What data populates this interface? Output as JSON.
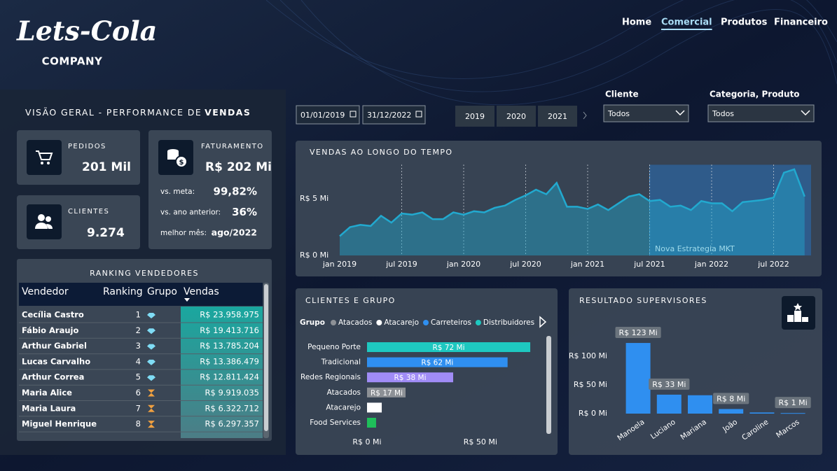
{
  "header": {
    "logo": "Lets-Cola",
    "company": "COMPANY",
    "nav": [
      "Home",
      "Comercial",
      "Produtos",
      "Financeiro"
    ],
    "active_nav": 1
  },
  "filters": {
    "date_start": "01/01/2019",
    "date_end": "31/12/2022",
    "years": [
      "2019",
      "2020",
      "2021"
    ],
    "cliente": {
      "label": "Cliente",
      "value": "Todos"
    },
    "categoria": {
      "label": "Categoria, Produto",
      "value": "Todos"
    }
  },
  "overview": {
    "title": "VISÃO GERAL - PERFORMANCE DE",
    "title_bold": "VENDAS",
    "pedidos": {
      "label": "PEDIDOS",
      "value": "201 Mil"
    },
    "clientes": {
      "label": "CLIENTES",
      "value": "9.274"
    },
    "faturamento": {
      "label": "FATURAMENTO",
      "value": "R$ 202 Mi",
      "rows": [
        {
          "label": "vs. meta:",
          "value": "99,82%"
        },
        {
          "label": "vs. ano anterior:",
          "value": "36%"
        },
        {
          "label": "melhor mês:",
          "value": "ago/2022"
        }
      ]
    }
  },
  "ranking": {
    "title": "RANKING VENDEDORES",
    "columns": [
      "Vendedor",
      "Ranking",
      "Grupo",
      "Vendas"
    ],
    "rows": [
      [
        "Cecília Castro",
        1,
        "R$ 23.958.975"
      ],
      [
        "Fábio Araujo",
        2,
        "R$ 19.413.716"
      ],
      [
        "Arthur Gabriel",
        3,
        "R$ 13.785.204"
      ],
      [
        "Lucas Carvalho",
        4,
        "R$ 13.386.479"
      ],
      [
        "Arthur Correa",
        5,
        "R$ 12.811.424"
      ],
      [
        "Maria Alice",
        6,
        "R$ 9.919.035"
      ],
      [
        "Maria Laura",
        7,
        "R$ 6.322.712"
      ],
      [
        "Miguel Henrique",
        8,
        "R$ 6.297.357"
      ]
    ]
  },
  "chart_data": [
    {
      "type": "line",
      "title": "VENDAS AO LONGO DO TEMPO",
      "x": [
        "2019-01",
        "2019-02",
        "2019-03",
        "2019-04",
        "2019-05",
        "2019-06",
        "2019-07",
        "2019-08",
        "2019-09",
        "2019-10",
        "2019-11",
        "2019-12",
        "2020-01",
        "2020-02",
        "2020-03",
        "2020-04",
        "2020-05",
        "2020-06",
        "2020-07",
        "2020-08",
        "2020-09",
        "2020-10",
        "2020-11",
        "2020-12",
        "2021-01",
        "2021-02",
        "2021-03",
        "2021-04",
        "2021-05",
        "2021-06",
        "2021-07",
        "2021-08",
        "2021-09",
        "2021-10",
        "2021-11",
        "2021-12",
        "2022-01",
        "2022-02",
        "2022-03",
        "2022-04",
        "2022-05",
        "2022-06",
        "2022-07",
        "2022-08",
        "2022-09",
        "2022-10"
      ],
      "values": [
        1.7,
        2.5,
        2.7,
        2.6,
        3.5,
        2.9,
        3.7,
        3.6,
        3.8,
        3.2,
        3.2,
        3.8,
        3.6,
        3.9,
        3.8,
        4.2,
        4.4,
        4.9,
        5.3,
        5.8,
        5.4,
        6.4,
        4.3,
        4.3,
        4.1,
        4.5,
        4.0,
        4.6,
        5.2,
        5.4,
        4.8,
        4.9,
        4.3,
        4.4,
        4.0,
        4.8,
        4.6,
        4.6,
        3.9,
        4.7,
        4.8,
        4.9,
        5.1,
        7.3,
        7.6,
        5.2
      ],
      "color": "#22a9cf",
      "ylim": [
        0,
        8
      ],
      "yticks": [
        {
          "value": 0,
          "label": "R$ 0 Mi"
        },
        {
          "value": 5,
          "label": "R$ 5 Mi"
        }
      ],
      "xticks": [
        {
          "value": "2019-01",
          "label": "jan 2019"
        },
        {
          "value": "2019-07",
          "label": "jul 2019"
        },
        {
          "value": "2020-01",
          "label": "jan 2020"
        },
        {
          "value": "2020-07",
          "label": "jul 2020"
        },
        {
          "value": "2021-01",
          "label": "jan 2021"
        },
        {
          "value": "2021-07",
          "label": "jul 2021"
        },
        {
          "value": "2022-01",
          "label": "jan 2022"
        },
        {
          "value": "2022-07",
          "label": "jul 2022"
        }
      ],
      "grid": "x",
      "annotation": {
        "from": "2021-07",
        "label": "Nova Estrategia MKT"
      }
    },
    {
      "type": "bar",
      "orientation": "horizontal",
      "title": "CLIENTES E GRUPO",
      "legend_title": "Grupo",
      "legend": [
        {
          "name": "Atacados",
          "color": "#8d9196"
        },
        {
          "name": "Atacarejo",
          "color": "#ffffff"
        },
        {
          "name": "Carreteiros",
          "color": "#2f8ff0"
        },
        {
          "name": "Distribuidores",
          "color": "#1ec8c0"
        }
      ],
      "categories": [
        "Pequeno Porte",
        "Tradicional",
        "Redes Regionais",
        "Atacados",
        "Atacarejo",
        "Food Services"
      ],
      "values": [
        72,
        62,
        38,
        17,
        6.5,
        4
      ],
      "value_labels": [
        "R$ 72 Mi",
        "R$ 62 Mi",
        "R$ 38 Mi",
        "R$ 17 Mi",
        null,
        null
      ],
      "colors": [
        "#1ec8c0",
        "#2f8ff0",
        "#a08cf6",
        "#8d9196",
        "#ffffff",
        "#1fbf5a"
      ],
      "xlim": [
        0,
        76
      ],
      "xticks": [
        {
          "value": 0,
          "label": "R$ 0 Mi"
        },
        {
          "value": 50,
          "label": "R$ 50 Mi"
        }
      ]
    },
    {
      "type": "bar",
      "title": "RESULTADO SUPERVISORES",
      "categories": [
        "Manoela",
        "Luciano",
        "Mariana",
        "João",
        "Caroline",
        "Marcos"
      ],
      "values": [
        123,
        33,
        32,
        8,
        2,
        1
      ],
      "value_labels": [
        "R$ 123 Mi",
        "R$ 33 Mi",
        null,
        "R$ 8 Mi",
        null,
        "R$ 1 Mi"
      ],
      "color": "#2f8ff0",
      "ylim": [
        0,
        145
      ],
      "yticks": [
        {
          "value": 0,
          "label": "R$ 0 Mi"
        },
        {
          "value": 50,
          "label": "R$ 50 Mi"
        },
        {
          "value": 100,
          "label": "R$ 100 Mi"
        }
      ]
    }
  ]
}
